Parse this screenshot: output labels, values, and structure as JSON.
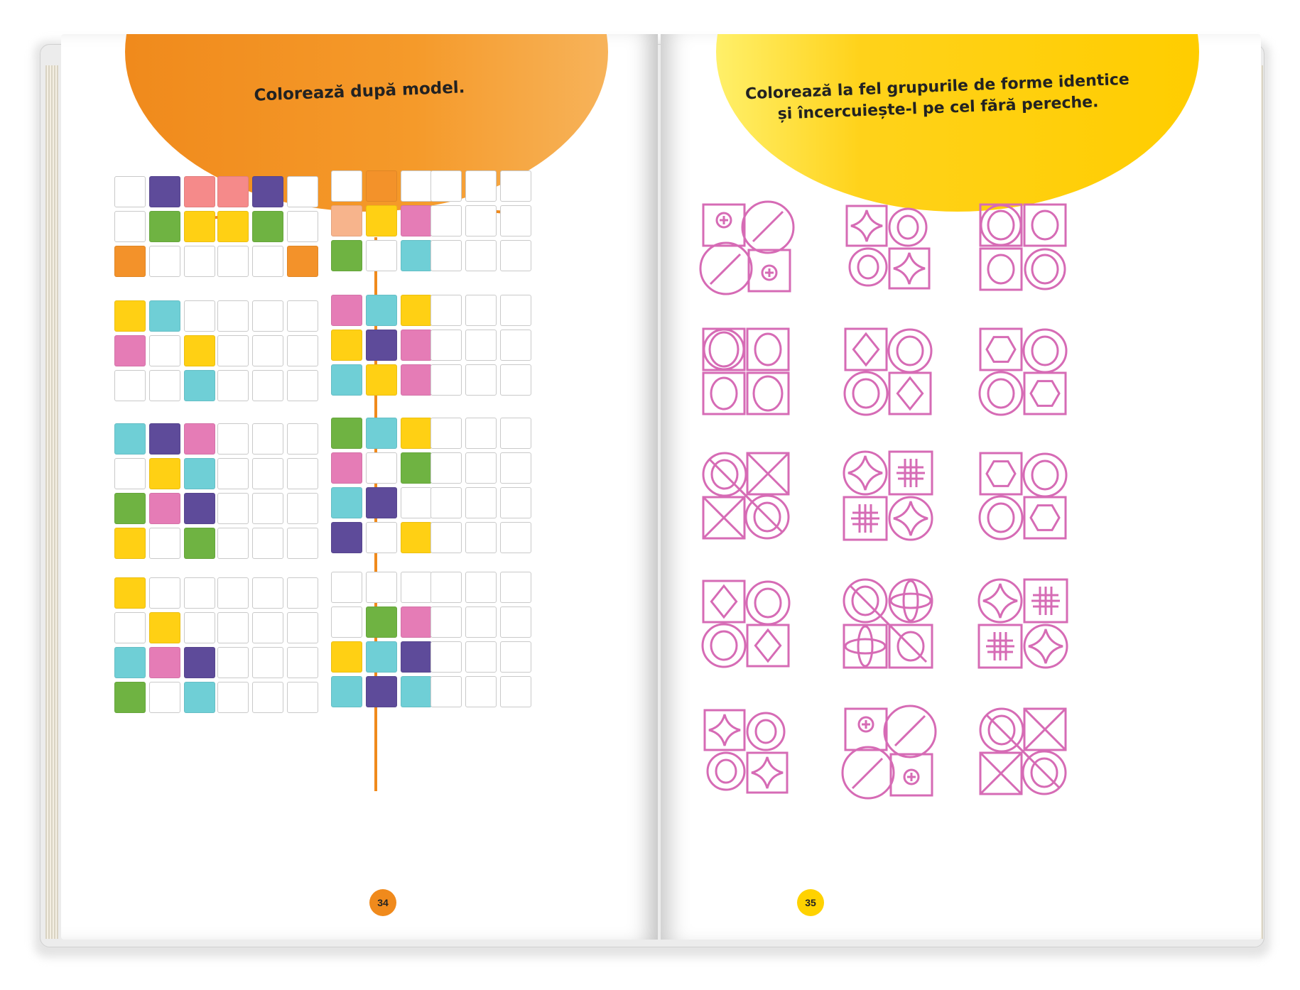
{
  "left_page": {
    "instruction": "Colorează după model.",
    "page_number": "34",
    "colors": {
      "purple": "#5e4b9a",
      "pink": "#f58a8a",
      "green": "#6fb342",
      "yellow": "#ffd014",
      "orange": "#f3922a",
      "peach": "#f7b48c",
      "magenta": "#e57cb6",
      "cyan": "#6fcfd6",
      "white": "#ffffff"
    },
    "exercises": [
      {
        "model": [
          [
            "white",
            "purple",
            "pink"
          ],
          [
            "white",
            "green",
            "yellow"
          ],
          [
            "orange",
            "white",
            "white"
          ]
        ],
        "copy": [
          [
            "pink",
            "purple",
            "white"
          ],
          [
            "yellow",
            "green",
            "white"
          ],
          [
            "white",
            "white",
            "orange"
          ]
        ]
      },
      {
        "model": [
          [
            "white",
            "orange",
            "white"
          ],
          [
            "peach",
            "yellow",
            "magenta"
          ],
          [
            "green",
            "white",
            "cyan"
          ]
        ],
        "copy": [
          [
            "white",
            "white",
            "white"
          ],
          [
            "white",
            "white",
            "white"
          ],
          [
            "white",
            "white",
            "white"
          ]
        ]
      },
      {
        "model": [
          [
            "yellow",
            "cyan",
            "white"
          ],
          [
            "magenta",
            "white",
            "yellow"
          ],
          [
            "white",
            "white",
            "cyan"
          ]
        ],
        "copy": [
          [
            "white",
            "white",
            "white"
          ],
          [
            "white",
            "white",
            "white"
          ],
          [
            "white",
            "white",
            "white"
          ]
        ]
      },
      {
        "model": [
          [
            "magenta",
            "cyan",
            "yellow"
          ],
          [
            "yellow",
            "purple",
            "magenta"
          ],
          [
            "cyan",
            "yellow",
            "magenta"
          ]
        ],
        "copy": [
          [
            "white",
            "white",
            "white"
          ],
          [
            "white",
            "white",
            "white"
          ],
          [
            "white",
            "white",
            "white"
          ]
        ]
      },
      {
        "model": [
          [
            "cyan",
            "purple",
            "magenta"
          ],
          [
            "white",
            "yellow",
            "cyan"
          ],
          [
            "green",
            "magenta",
            "purple"
          ],
          [
            "yellow",
            "white",
            "green"
          ]
        ],
        "copy": [
          [
            "white",
            "white",
            "white"
          ],
          [
            "white",
            "white",
            "white"
          ],
          [
            "white",
            "white",
            "white"
          ],
          [
            "white",
            "white",
            "white"
          ]
        ]
      },
      {
        "model": [
          [
            "green",
            "cyan",
            "yellow"
          ],
          [
            "magenta",
            "white",
            "green"
          ],
          [
            "cyan",
            "purple",
            "white"
          ],
          [
            "purple",
            "white",
            "yellow"
          ]
        ],
        "copy": [
          [
            "white",
            "white",
            "white"
          ],
          [
            "white",
            "white",
            "white"
          ],
          [
            "white",
            "white",
            "white"
          ],
          [
            "white",
            "white",
            "white"
          ]
        ]
      },
      {
        "model": [
          [
            "yellow",
            "white",
            "white"
          ],
          [
            "white",
            "yellow",
            "white"
          ],
          [
            "cyan",
            "magenta",
            "purple"
          ],
          [
            "green",
            "white",
            "cyan"
          ]
        ],
        "copy": [
          [
            "white",
            "white",
            "white"
          ],
          [
            "white",
            "white",
            "white"
          ],
          [
            "white",
            "white",
            "white"
          ],
          [
            "white",
            "white",
            "white"
          ]
        ]
      },
      {
        "model": [
          [
            "white",
            "white",
            "white"
          ],
          [
            "white",
            "green",
            "magenta"
          ],
          [
            "yellow",
            "cyan",
            "purple"
          ],
          [
            "cyan",
            "purple",
            "cyan"
          ]
        ],
        "copy": [
          [
            "white",
            "white",
            "white"
          ],
          [
            "white",
            "white",
            "white"
          ],
          [
            "white",
            "white",
            "white"
          ],
          [
            "white",
            "white",
            "white"
          ]
        ]
      }
    ]
  },
  "right_page": {
    "instruction_line1": "Colorează la fel grupurile de forme identice",
    "instruction_line2": "și încercuiește-l pe cel fără pereche.",
    "page_number": "35",
    "shape_color": "#d66bb5",
    "groups": [
      {
        "variant": "square-circle-oval-plus"
      },
      {
        "variant": "star-circle"
      },
      {
        "variant": "circles-squares"
      },
      {
        "variant": "circles-squares-alt"
      },
      {
        "variant": "diamond-circle"
      },
      {
        "variant": "hexagon-circle"
      },
      {
        "variant": "oval-cross"
      },
      {
        "variant": "star-grid"
      },
      {
        "variant": "hexagon-circle"
      },
      {
        "variant": "diamond-circle"
      },
      {
        "variant": "oval-ellipse"
      },
      {
        "variant": "star-grid"
      },
      {
        "variant": "star-circle"
      },
      {
        "variant": "square-circle-oval-plus"
      },
      {
        "variant": "oval-cross"
      }
    ]
  }
}
